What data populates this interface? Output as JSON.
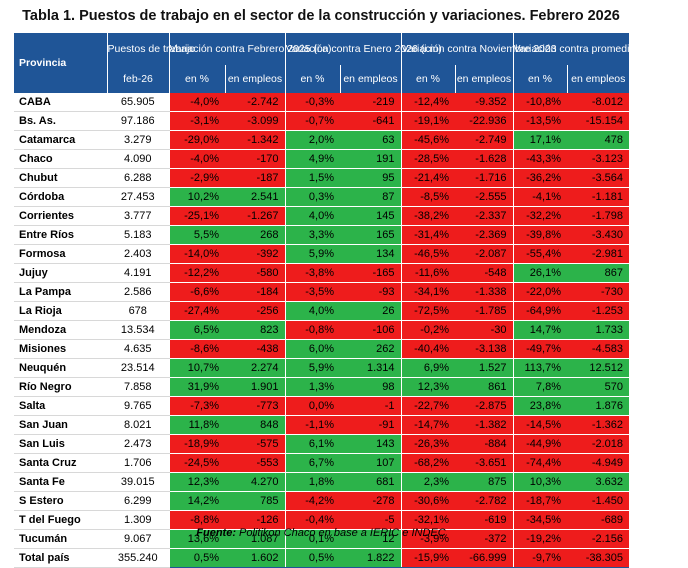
{
  "title": "Tabla 1. Puestos de trabajo en el sector de la construcción y variaciones. Febrero 2026",
  "headers": {
    "provincia": "Provincia",
    "puestos": "Puestos de trabajo",
    "feb": "feb-26",
    "groups": [
      "Variación contra Febrero 2025 (i.a)",
      "Variación contra Enero 2026 (i.m)",
      "Variación contra Noviembre 2023",
      "Variación contra promedio 2007-2023"
    ],
    "pct": "en %",
    "emp": "en empleos"
  },
  "rows": [
    {
      "name": "CABA",
      "puestos": "65.905",
      "v": [
        "-4,0%",
        "-2.742",
        "-0,3%",
        "-219",
        "-12,4%",
        "-9.352",
        "-10,8%",
        "-8.012"
      ],
      "c": [
        "r",
        "r",
        "r",
        "r",
        "r",
        "r",
        "r",
        "r"
      ]
    },
    {
      "name": "Bs. As.",
      "puestos": "97.186",
      "v": [
        "-3,1%",
        "-3.099",
        "-0,7%",
        "-641",
        "-19,1%",
        "-22.936",
        "-13,5%",
        "-15.154"
      ],
      "c": [
        "r",
        "r",
        "r",
        "r",
        "r",
        "r",
        "r",
        "r"
      ]
    },
    {
      "name": "Catamarca",
      "puestos": "3.279",
      "v": [
        "-29,0%",
        "-1.342",
        "2,0%",
        "63",
        "-45,6%",
        "-2.749",
        "17,1%",
        "478"
      ],
      "c": [
        "r",
        "r",
        "g",
        "g",
        "r",
        "r",
        "g",
        "g"
      ]
    },
    {
      "name": "Chaco",
      "puestos": "4.090",
      "v": [
        "-4,0%",
        "-170",
        "4,9%",
        "191",
        "-28,5%",
        "-1.628",
        "-43,3%",
        "-3.123"
      ],
      "c": [
        "r",
        "r",
        "g",
        "g",
        "r",
        "r",
        "r",
        "r"
      ]
    },
    {
      "name": "Chubut",
      "puestos": "6.288",
      "v": [
        "-2,9%",
        "-187",
        "1,5%",
        "95",
        "-21,4%",
        "-1.716",
        "-36,2%",
        "-3.564"
      ],
      "c": [
        "r",
        "r",
        "g",
        "g",
        "r",
        "r",
        "r",
        "r"
      ]
    },
    {
      "name": "Córdoba",
      "puestos": "27.453",
      "v": [
        "10,2%",
        "2.541",
        "0,3%",
        "87",
        "-8,5%",
        "-2.555",
        "-4,1%",
        "-1.181"
      ],
      "c": [
        "g",
        "g",
        "g",
        "g",
        "r",
        "r",
        "r",
        "r"
      ]
    },
    {
      "name": "Corrientes",
      "puestos": "3.777",
      "v": [
        "-25,1%",
        "-1.267",
        "4,0%",
        "145",
        "-38,2%",
        "-2.337",
        "-32,2%",
        "-1.798"
      ],
      "c": [
        "r",
        "r",
        "g",
        "g",
        "r",
        "r",
        "r",
        "r"
      ]
    },
    {
      "name": "Entre Ríos",
      "puestos": "5.183",
      "v": [
        "5,5%",
        "268",
        "3,3%",
        "165",
        "-31,4%",
        "-2.369",
        "-39,8%",
        "-3.430"
      ],
      "c": [
        "g",
        "g",
        "g",
        "g",
        "r",
        "r",
        "r",
        "r"
      ]
    },
    {
      "name": "Formosa",
      "puestos": "2.403",
      "v": [
        "-14,0%",
        "-392",
        "5,9%",
        "134",
        "-46,5%",
        "-2.087",
        "-55,4%",
        "-2.981"
      ],
      "c": [
        "r",
        "r",
        "g",
        "g",
        "r",
        "r",
        "r",
        "r"
      ]
    },
    {
      "name": "Jujuy",
      "puestos": "4.191",
      "v": [
        "-12,2%",
        "-580",
        "-3,8%",
        "-165",
        "-11,6%",
        "-548",
        "26,1%",
        "867"
      ],
      "c": [
        "r",
        "r",
        "r",
        "r",
        "r",
        "r",
        "g",
        "g"
      ]
    },
    {
      "name": "La Pampa",
      "puestos": "2.586",
      "v": [
        "-6,6%",
        "-184",
        "-3,5%",
        "-93",
        "-34,1%",
        "-1.338",
        "-22,0%",
        "-730"
      ],
      "c": [
        "r",
        "r",
        "r",
        "r",
        "r",
        "r",
        "r",
        "r"
      ]
    },
    {
      "name": "La Rioja",
      "puestos": "678",
      "v": [
        "-27,4%",
        "-256",
        "4,0%",
        "26",
        "-72,5%",
        "-1.785",
        "-64,9%",
        "-1.253"
      ],
      "c": [
        "r",
        "r",
        "g",
        "g",
        "r",
        "r",
        "r",
        "r"
      ]
    },
    {
      "name": "Mendoza",
      "puestos": "13.534",
      "v": [
        "6,5%",
        "823",
        "-0,8%",
        "-106",
        "-0,2%",
        "-30",
        "14,7%",
        "1.733"
      ],
      "c": [
        "g",
        "g",
        "r",
        "r",
        "r",
        "r",
        "g",
        "g"
      ]
    },
    {
      "name": "Misiones",
      "puestos": "4.635",
      "v": [
        "-8,6%",
        "-438",
        "6,0%",
        "262",
        "-40,4%",
        "-3.138",
        "-49,7%",
        "-4.583"
      ],
      "c": [
        "r",
        "r",
        "g",
        "g",
        "r",
        "r",
        "r",
        "r"
      ]
    },
    {
      "name": "Neuquén",
      "puestos": "23.514",
      "v": [
        "10,7%",
        "2.274",
        "5,9%",
        "1.314",
        "6,9%",
        "1.527",
        "113,7%",
        "12.512"
      ],
      "c": [
        "g",
        "g",
        "g",
        "g",
        "g",
        "g",
        "g",
        "g"
      ]
    },
    {
      "name": "Río Negro",
      "puestos": "7.858",
      "v": [
        "31,9%",
        "1.901",
        "1,3%",
        "98",
        "12,3%",
        "861",
        "7,8%",
        "570"
      ],
      "c": [
        "g",
        "g",
        "g",
        "g",
        "g",
        "g",
        "g",
        "g"
      ]
    },
    {
      "name": "Salta",
      "puestos": "9.765",
      "v": [
        "-7,3%",
        "-773",
        "0,0%",
        "-1",
        "-22,7%",
        "-2.875",
        "23,8%",
        "1.876"
      ],
      "c": [
        "r",
        "r",
        "r",
        "r",
        "r",
        "r",
        "g",
        "g"
      ]
    },
    {
      "name": "San Juan",
      "puestos": "8.021",
      "v": [
        "11,8%",
        "848",
        "-1,1%",
        "-91",
        "-14,7%",
        "-1.382",
        "-14,5%",
        "-1.362"
      ],
      "c": [
        "g",
        "g",
        "r",
        "r",
        "r",
        "r",
        "r",
        "r"
      ]
    },
    {
      "name": "San Luis",
      "puestos": "2.473",
      "v": [
        "-18,9%",
        "-575",
        "6,1%",
        "143",
        "-26,3%",
        "-884",
        "-44,9%",
        "-2.018"
      ],
      "c": [
        "r",
        "r",
        "g",
        "g",
        "r",
        "r",
        "r",
        "r"
      ]
    },
    {
      "name": "Santa Cruz",
      "puestos": "1.706",
      "v": [
        "-24,5%",
        "-553",
        "6,7%",
        "107",
        "-68,2%",
        "-3.651",
        "-74,4%",
        "-4.949"
      ],
      "c": [
        "r",
        "r",
        "g",
        "g",
        "r",
        "r",
        "r",
        "r"
      ]
    },
    {
      "name": "Santa Fe",
      "puestos": "39.015",
      "v": [
        "12,3%",
        "4.270",
        "1,8%",
        "681",
        "2,3%",
        "875",
        "10,3%",
        "3.632"
      ],
      "c": [
        "g",
        "g",
        "g",
        "g",
        "g",
        "g",
        "g",
        "g"
      ]
    },
    {
      "name": "S Estero",
      "puestos": "6.299",
      "v": [
        "14,2%",
        "785",
        "-4,2%",
        "-278",
        "-30,6%",
        "-2.782",
        "-18,7%",
        "-1.450"
      ],
      "c": [
        "g",
        "g",
        "r",
        "r",
        "r",
        "r",
        "r",
        "r"
      ]
    },
    {
      "name": "T del Fuego",
      "puestos": "1.309",
      "v": [
        "-8,8%",
        "-126",
        "-0,4%",
        "-5",
        "-32,1%",
        "-619",
        "-34,5%",
        "-689"
      ],
      "c": [
        "r",
        "r",
        "r",
        "r",
        "r",
        "r",
        "r",
        "r"
      ]
    },
    {
      "name": "Tucumán",
      "puestos": "9.067",
      "v": [
        "13,6%",
        "1.087",
        "0,1%",
        "12",
        "-3,9%",
        "-372",
        "-19,2%",
        "-2.156"
      ],
      "c": [
        "g",
        "g",
        "g",
        "g",
        "r",
        "r",
        "r",
        "r"
      ]
    },
    {
      "name": "Total país",
      "puestos": "355.240",
      "v": [
        "0,5%",
        "1.602",
        "0,5%",
        "1.822",
        "-15,9%",
        "-66.999",
        "-9,7%",
        "-38.305"
      ],
      "c": [
        "g",
        "g",
        "g",
        "g",
        "r",
        "r",
        "r",
        "r"
      ],
      "total": true
    }
  ],
  "source_label": "Fuente:",
  "source_text": " Politikon Chaco en base a IERIC e INDEC",
  "colors": {
    "header": "#1f5597",
    "positive": "#2cb34a",
    "negative": "#ee1c1c"
  }
}
